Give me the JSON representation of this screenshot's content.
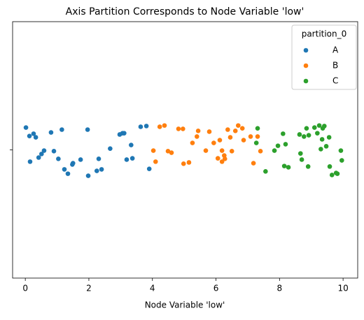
{
  "chart_data": {
    "type": "scatter",
    "title": "Axis Partition Corresponds to Node Variable 'low'",
    "x_label": "Node Variable 'low'",
    "legend_title": "partition_0",
    "legend_position": "upper right",
    "xlim": [
      -0.4,
      10.46
    ],
    "xticks": [
      0,
      2,
      4,
      6,
      8,
      10
    ],
    "ylim": [
      -0.5,
      0.5
    ],
    "yticks": [
      {
        "value": 0,
        "label": null
      }
    ],
    "series": [
      {
        "name": "A",
        "color": "#1f77b4",
        "x": [
          0.02,
          0.13,
          0.15,
          0.26,
          0.33,
          0.42,
          0.51,
          0.59,
          0.81,
          0.9,
          1.04,
          1.15,
          1.23,
          1.34,
          1.48,
          1.5,
          1.74,
          1.96,
          1.98,
          2.25,
          2.31,
          2.4,
          2.67,
          2.97,
          3.06,
          3.11,
          3.19,
          3.33,
          3.37,
          3.63,
          3.81,
          3.9
        ],
        "values": [
          0.087,
          0.054,
          -0.046,
          0.063,
          0.049,
          -0.03,
          -0.016,
          -0.003,
          0.068,
          -0.005,
          -0.035,
          0.079,
          -0.076,
          -0.093,
          -0.057,
          -0.052,
          -0.038,
          0.079,
          -0.101,
          -0.082,
          -0.035,
          -0.076,
          0.005,
          0.06,
          0.065,
          0.065,
          -0.038,
          0.019,
          -0.033,
          0.09,
          0.093,
          -0.074
        ]
      },
      {
        "name": "B",
        "color": "#ff7f0e",
        "x": [
          4.03,
          4.1,
          4.23,
          4.38,
          4.49,
          4.6,
          4.82,
          4.96,
          4.98,
          5.15,
          5.26,
          5.4,
          5.44,
          5.68,
          5.79,
          5.93,
          6.06,
          6.12,
          6.19,
          6.19,
          6.26,
          6.28,
          6.37,
          6.45,
          6.5,
          6.61,
          6.7,
          6.83,
          6.87,
          7.09,
          7.18,
          7.31,
          7.4
        ],
        "values": [
          -0.003,
          -0.046,
          0.09,
          0.095,
          -0.005,
          -0.011,
          0.082,
          0.082,
          -0.054,
          -0.049,
          0.027,
          0.052,
          0.074,
          -0.003,
          0.071,
          0.027,
          -0.033,
          0.038,
          -0.003,
          -0.046,
          -0.022,
          -0.035,
          0.079,
          0.049,
          -0.005,
          0.074,
          0.095,
          0.084,
          0.038,
          0.052,
          -0.052,
          0.052,
          -0.005
        ]
      },
      {
        "name": "C",
        "color": "#2ca02c",
        "x": [
          7.31,
          7.27,
          7.56,
          7.84,
          7.95,
          8.11,
          8.15,
          8.19,
          8.28,
          8.63,
          8.66,
          8.7,
          8.77,
          8.85,
          8.9,
          8.92,
          9.1,
          9.19,
          9.25,
          9.3,
          9.34,
          9.36,
          9.41,
          9.47,
          9.56,
          9.58,
          9.65,
          9.78,
          9.82,
          9.93,
          9.96
        ],
        "values": [
          0.084,
          0.027,
          -0.084,
          -0.003,
          0.016,
          0.063,
          -0.063,
          0.022,
          -0.068,
          0.06,
          -0.014,
          -0.038,
          0.052,
          0.084,
          -0.065,
          0.057,
          0.087,
          0.065,
          0.095,
          0.003,
          0.041,
          0.084,
          0.093,
          0.014,
          0.049,
          -0.065,
          -0.098,
          -0.09,
          -0.093,
          -0.003,
          -0.041
        ]
      }
    ]
  }
}
